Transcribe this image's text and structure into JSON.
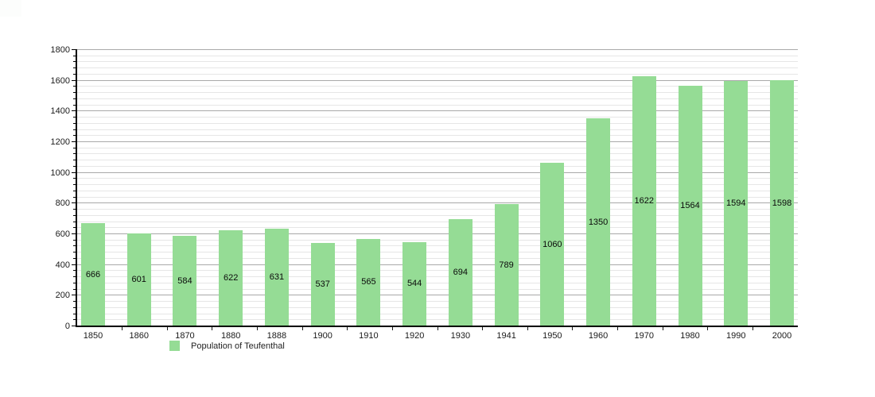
{
  "chart_data": {
    "type": "bar",
    "title": "",
    "categories": [
      "1850",
      "1860",
      "1870",
      "1880",
      "1888",
      "1900",
      "1910",
      "1920",
      "1930",
      "1941",
      "1950",
      "1960",
      "1970",
      "1980",
      "1990",
      "2000"
    ],
    "values": [
      666,
      601,
      584,
      622,
      631,
      537,
      565,
      544,
      694,
      789,
      1060,
      1350,
      1622,
      1564,
      1594,
      1598
    ],
    "xlabel": "",
    "ylabel": "",
    "ylim": [
      0,
      1800
    ],
    "ytick_step": 200,
    "yticks": [
      0,
      200,
      400,
      600,
      800,
      1000,
      1200,
      1400,
      1600,
      1800
    ],
    "minor_grid_step": 40,
    "grid": "on",
    "value_labels": "inside-center",
    "legend": {
      "label": "Population of Teufenthal",
      "position": "bottom-left"
    },
    "colors": {
      "bar_fill": "#95dc95",
      "major_gridline": "#a9a9a9",
      "minor_gridline": "#e6e6e6",
      "axis": "#000000",
      "text": "#1a1a1a"
    }
  }
}
